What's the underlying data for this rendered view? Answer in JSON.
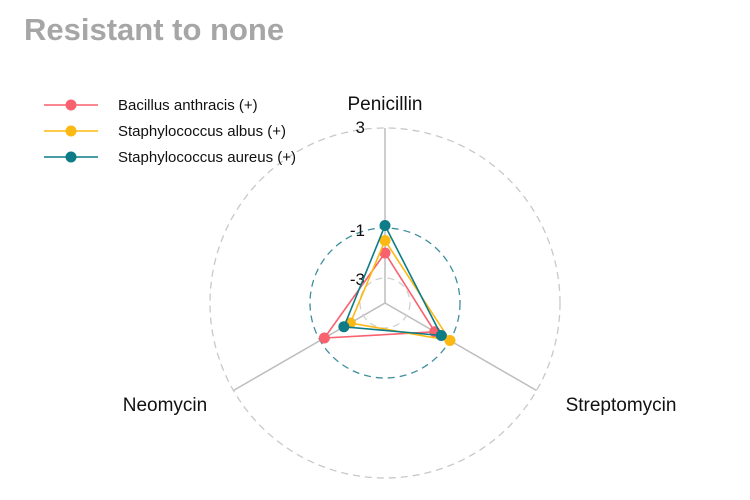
{
  "chart_data": {
    "type": "radar",
    "title": "Resistant to none",
    "axes": [
      "Penicillin",
      "Streptomycin",
      "Neomycin"
    ],
    "scale": "log",
    "rlim": [
      -4,
      3
    ],
    "ticks": [
      {
        "value": 3,
        "label": "3"
      },
      {
        "value": -1,
        "label": "-1"
      },
      {
        "value": -3,
        "label": "-3"
      }
    ],
    "grid": true,
    "legend": "top-left",
    "series": [
      {
        "name": "Bacillus anthracis (+)",
        "color": "#F8616E",
        "values": [
          -2.0,
          -1.7,
          -1.2
        ]
      },
      {
        "name": "Staphylococcus albus (+)",
        "color": "#FDB913",
        "values": [
          -1.5,
          -1.0,
          -2.4
        ]
      },
      {
        "name": "Staphylococcus aureus (+)",
        "color": "#0D7C86",
        "values": [
          -0.9,
          -1.4,
          -2.1
        ]
      }
    ]
  }
}
